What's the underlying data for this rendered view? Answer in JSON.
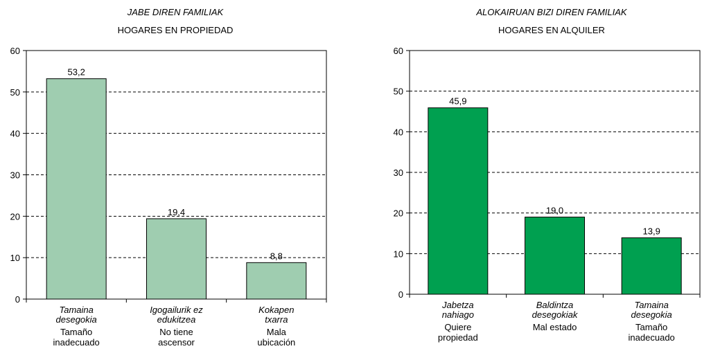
{
  "chart_data": [
    {
      "type": "bar",
      "title": "JABE DIREN FAMILIAK",
      "subtitle": "HOGARES EN PROPIEDAD",
      "categories": [
        {
          "basque": [
            "Tamaina",
            "desegokia"
          ],
          "spanish": [
            "Tamaño",
            "inadecuado"
          ]
        },
        {
          "basque": [
            "Igogailurik ez",
            "edukitzea"
          ],
          "spanish": [
            "No tiene",
            "ascensor"
          ]
        },
        {
          "basque": [
            "Kokapen",
            "txarra"
          ],
          "spanish": [
            "Mala",
            "ubicación"
          ]
        }
      ],
      "values": [
        53.2,
        19.4,
        8.8
      ],
      "value_labels": [
        "53,2",
        "19,4",
        "8,8"
      ],
      "ylim": [
        0,
        60
      ],
      "yticks": [
        "0",
        "10",
        "20",
        "30",
        "40",
        "50",
        "60"
      ],
      "grid": "dashed-horizontal",
      "bar_color": "#9fcdb0"
    },
    {
      "type": "bar",
      "title": "ALOKAIRUAN BIZI DIREN FAMILIAK",
      "subtitle": "HOGARES EN ALQUILER",
      "categories": [
        {
          "basque": [
            "Jabetza",
            "nahiago"
          ],
          "spanish": [
            "Quiere",
            "propiedad"
          ]
        },
        {
          "basque": [
            "Baldintza",
            "desegokiak"
          ],
          "spanish": [
            "Mal estado"
          ]
        },
        {
          "basque": [
            "Tamaina",
            "desegokia"
          ],
          "spanish": [
            "Tamaño",
            "inadecuado"
          ]
        }
      ],
      "values": [
        45.9,
        19.0,
        13.9
      ],
      "value_labels": [
        "45,9",
        "19,0",
        "13,9"
      ],
      "ylim": [
        0,
        60
      ],
      "yticks": [
        "0",
        "10",
        "20",
        "30",
        "40",
        "50",
        "60"
      ],
      "grid": "dashed-horizontal",
      "bar_color": "#00a050"
    }
  ]
}
